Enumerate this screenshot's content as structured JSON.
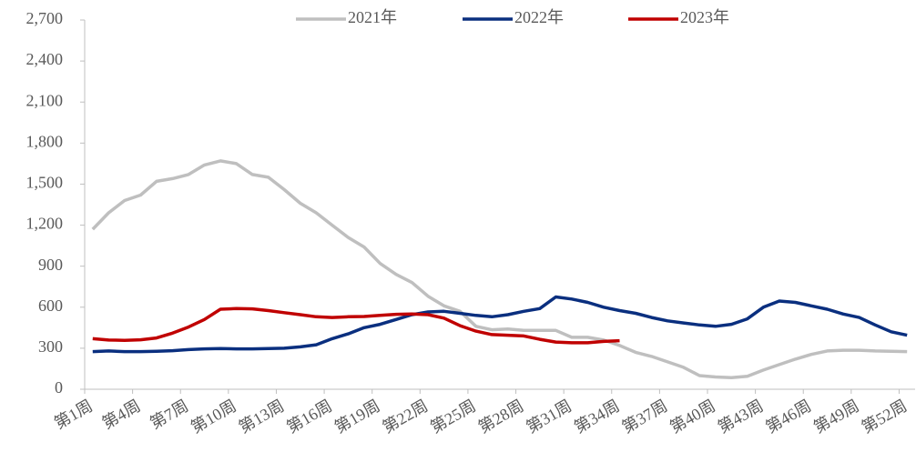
{
  "chart_data": {
    "type": "line",
    "categories": [
      "第1周",
      null,
      null,
      "第4周",
      null,
      null,
      "第7周",
      null,
      null,
      "第10周",
      null,
      null,
      "第13周",
      null,
      null,
      "第16周",
      null,
      null,
      "第19周",
      null,
      null,
      "第22周",
      null,
      null,
      "第25周",
      null,
      null,
      "第28周",
      null,
      null,
      "第31周",
      null,
      null,
      "第34周",
      null,
      null,
      "第37周",
      null,
      null,
      "第40周",
      null,
      null,
      "第43周",
      null,
      null,
      "第46周",
      null,
      null,
      "第49周",
      null,
      null,
      "第52周"
    ],
    "series": [
      {
        "name": "2021年",
        "color": "#bfbfbf",
        "values": [
          1170,
          1290,
          1380,
          1420,
          1520,
          1540,
          1570,
          1640,
          1670,
          1650,
          1570,
          1550,
          1460,
          1360,
          1290,
          1200,
          1110,
          1040,
          920,
          840,
          780,
          680,
          610,
          570,
          460,
          435,
          440,
          430,
          430,
          430,
          380,
          380,
          360,
          320,
          270,
          240,
          200,
          160,
          100,
          90,
          85,
          95,
          140,
          180,
          220,
          255,
          280,
          285,
          285,
          280,
          278,
          275
        ]
      },
      {
        "name": "2022年",
        "color": "#0a2f7f",
        "values": [
          275,
          280,
          275,
          275,
          278,
          282,
          290,
          295,
          297,
          295,
          295,
          297,
          300,
          310,
          325,
          370,
          405,
          450,
          475,
          510,
          545,
          565,
          570,
          555,
          540,
          530,
          545,
          570,
          590,
          675,
          660,
          635,
          600,
          575,
          555,
          525,
          500,
          485,
          470,
          460,
          475,
          515,
          600,
          645,
          635,
          610,
          585,
          550,
          525,
          470,
          420,
          395
        ]
      },
      {
        "name": "2023年",
        "color": "#c00000",
        "values": [
          370,
          360,
          358,
          362,
          375,
          410,
          455,
          510,
          585,
          590,
          588,
          575,
          560,
          545,
          530,
          525,
          530,
          532,
          540,
          548,
          550,
          545,
          520,
          465,
          425,
          400,
          395,
          390,
          365,
          345,
          340,
          340,
          350,
          355,
          null,
          null,
          null,
          null,
          null,
          null,
          null,
          null,
          null,
          null,
          null,
          null,
          null,
          null,
          null,
          null,
          null,
          null
        ]
      }
    ],
    "ylim": [
      0,
      2700
    ],
    "yticks": [
      0,
      300,
      600,
      900,
      {
        "value": 1200,
        "label": "1,200"
      },
      {
        "value": 1500,
        "label": "1,500"
      },
      {
        "value": 1800,
        "label": "1,800"
      },
      {
        "value": 2100,
        "label": "2,100"
      },
      {
        "value": 2400,
        "label": "2,400"
      },
      {
        "value": 2700,
        "label": "2,700"
      }
    ],
    "legend": "top"
  }
}
